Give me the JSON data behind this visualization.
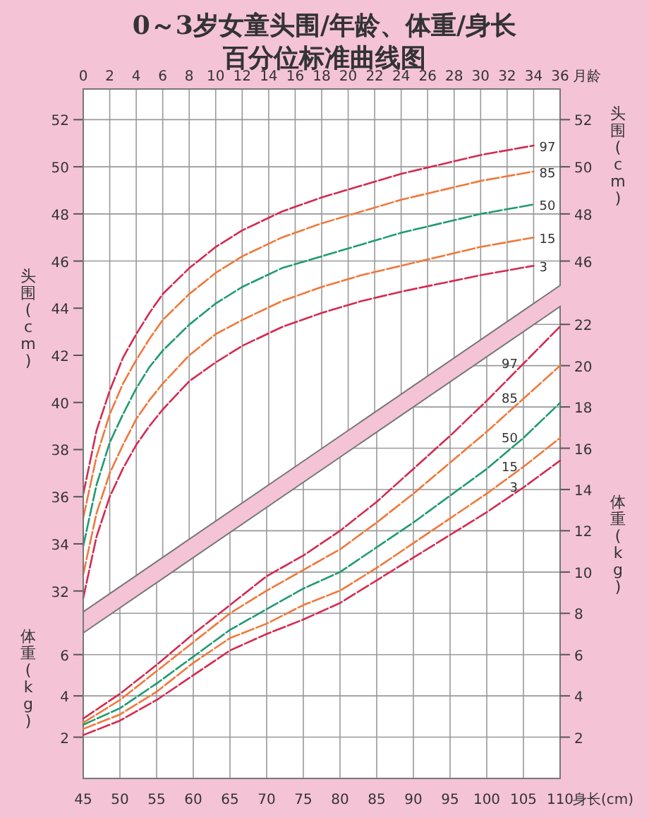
{
  "chart_data": [
    {
      "type": "line",
      "title": "0～3岁女童头围/年龄、体重/身长",
      "subtitle": "百分位标准曲线图",
      "xlabel": "月龄",
      "ylabel": "头围(cm)",
      "y2label": "头围(cm)",
      "x": [
        0,
        1,
        2,
        3,
        4,
        5,
        6,
        8,
        10,
        12,
        15,
        18,
        21,
        24,
        30,
        34
      ],
      "xlim": [
        0,
        36
      ],
      "xticks": [
        0,
        2,
        4,
        6,
        8,
        10,
        12,
        14,
        16,
        18,
        20,
        22,
        24,
        26,
        28,
        30,
        32,
        34,
        36
      ],
      "ylim": [
        31,
        53.3
      ],
      "yticks": [
        32,
        34,
        36,
        38,
        40,
        42,
        44,
        46,
        48,
        50,
        52
      ],
      "y2lim": [
        31,
        53.3
      ],
      "y2ticks": [
        46,
        48,
        50,
        52
      ],
      "grid": true,
      "line_style": "dashed",
      "series": [
        {
          "name": "97",
          "color": "#d42a50",
          "values": [
            36.1,
            38.8,
            40.5,
            41.9,
            42.9,
            43.8,
            44.6,
            45.7,
            46.6,
            47.3,
            48.1,
            48.7,
            49.2,
            49.7,
            50.5,
            50.9
          ]
        },
        {
          "name": "85",
          "color": "#f0783a",
          "values": [
            35.1,
            37.7,
            39.5,
            40.8,
            41.8,
            42.7,
            43.5,
            44.6,
            45.5,
            46.2,
            47.0,
            47.6,
            48.1,
            48.6,
            49.4,
            49.8
          ]
        },
        {
          "name": "50",
          "color": "#1f9a74",
          "values": [
            33.9,
            36.5,
            38.3,
            39.5,
            40.6,
            41.5,
            42.2,
            43.3,
            44.2,
            44.9,
            45.7,
            46.2,
            46.7,
            47.2,
            48.0,
            48.4
          ]
        },
        {
          "name": "15",
          "color": "#f0783a",
          "values": [
            32.7,
            35.3,
            37.0,
            38.2,
            39.3,
            40.1,
            40.8,
            42.0,
            42.9,
            43.5,
            44.3,
            44.9,
            45.4,
            45.8,
            46.6,
            47.0
          ]
        },
        {
          "name": "3",
          "color": "#d42a50",
          "values": [
            31.7,
            34.3,
            36.0,
            37.2,
            38.2,
            39.0,
            39.7,
            40.9,
            41.7,
            42.4,
            43.2,
            43.8,
            44.3,
            44.7,
            45.4,
            45.8
          ]
        }
      ]
    },
    {
      "type": "line",
      "xlabel": "身长(cm)",
      "ylabel": "体重(kg)",
      "y2label": "体重(kg)",
      "x": [
        45,
        50,
        55,
        60,
        65,
        70,
        75,
        80,
        85,
        90,
        95,
        100,
        105,
        110
      ],
      "xlim": [
        45,
        110
      ],
      "xticks": [
        45,
        50,
        55,
        60,
        65,
        70,
        75,
        80,
        85,
        90,
        95,
        100,
        105,
        110
      ],
      "ylim": [
        0,
        23
      ],
      "yticks": [
        2,
        4,
        6
      ],
      "y2lim": [
        0,
        23
      ],
      "y2ticks": [
        2,
        4,
        6,
        8,
        10,
        12,
        14,
        16,
        18,
        20,
        22
      ],
      "grid": true,
      "line_style": "dashed",
      "series": [
        {
          "name": "97",
          "color": "#d42a50",
          "values": [
            2.9,
            4.1,
            5.5,
            7.0,
            8.4,
            9.8,
            10.8,
            12.0,
            13.4,
            15.0,
            16.6,
            18.3,
            20.1,
            21.9
          ]
        },
        {
          "name": "85",
          "color": "#f0783a",
          "values": [
            2.7,
            3.8,
            5.2,
            6.6,
            8.0,
            9.1,
            10.1,
            11.1,
            12.4,
            13.8,
            15.3,
            16.8,
            18.4,
            20.0
          ]
        },
        {
          "name": "50",
          "color": "#1f9a74",
          "values": [
            2.6,
            3.4,
            4.6,
            5.9,
            7.2,
            8.2,
            9.2,
            10.0,
            11.2,
            12.4,
            13.7,
            15.0,
            16.5,
            18.2
          ]
        },
        {
          "name": "15",
          "color": "#f0783a",
          "values": [
            2.4,
            3.1,
            4.2,
            5.6,
            6.8,
            7.5,
            8.4,
            9.1,
            10.2,
            11.4,
            12.6,
            13.8,
            15.1,
            16.5
          ]
        },
        {
          "name": "3",
          "color": "#d42a50",
          "values": [
            2.1,
            2.8,
            3.8,
            5.0,
            6.2,
            7.0,
            7.7,
            8.5,
            9.6,
            10.7,
            11.8,
            12.9,
            14.1,
            15.4
          ]
        }
      ]
    }
  ]
}
